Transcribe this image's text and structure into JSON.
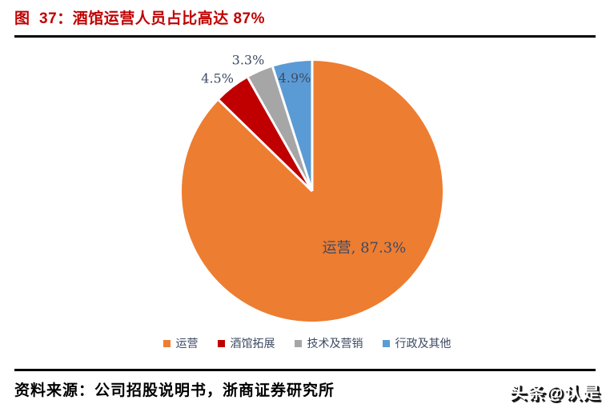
{
  "header": {
    "title": "图  37：酒馆运营人员占比高达 87%",
    "title_color": "#C00000",
    "rule_color": "#000000"
  },
  "chart_data": {
    "type": "pie",
    "title": "图 37：酒馆运营人员占比高达 87%",
    "start_angle_deg": 0,
    "direction": "clockwise",
    "total": 100,
    "center": {
      "x": 390,
      "y": 239
    },
    "radius": 163,
    "slice_gap_color": "#ffffff",
    "label_color": "#3D4A63",
    "legend_position": "bottom",
    "series": [
      {
        "name": "运营",
        "value": 87.3,
        "color": "#ED7D31",
        "label": "运营, 87.3%",
        "label_placement": "inside",
        "label_r_frac": 0.59,
        "label_angle_deg": 137.5,
        "label_size": 18
      },
      {
        "name": "酒馆拓展",
        "value": 4.5,
        "color": "#C00000",
        "label": "4.5%",
        "label_placement": "outside",
        "label_r_frac": 1.13,
        "label_angle_deg": 320,
        "label_size": 16
      },
      {
        "name": "技术及营销",
        "value": 3.3,
        "color": "#A6A6A6",
        "label": "3.3%",
        "label_placement": "outside",
        "label_r_frac": 1.12,
        "label_angle_deg": 334,
        "label_size": 16
      },
      {
        "name": "行政及其他",
        "value": 4.9,
        "color": "#5B9BD5",
        "label": "4.9%",
        "label_placement": "inside",
        "label_r_frac": 0.88,
        "label_angle_deg": null,
        "label_size": 16
      }
    ]
  },
  "footer": {
    "source": "资料来源：公司招股说明书，浙商证券研究所",
    "watermark": "头条@认是",
    "rule_color": "#000000"
  }
}
